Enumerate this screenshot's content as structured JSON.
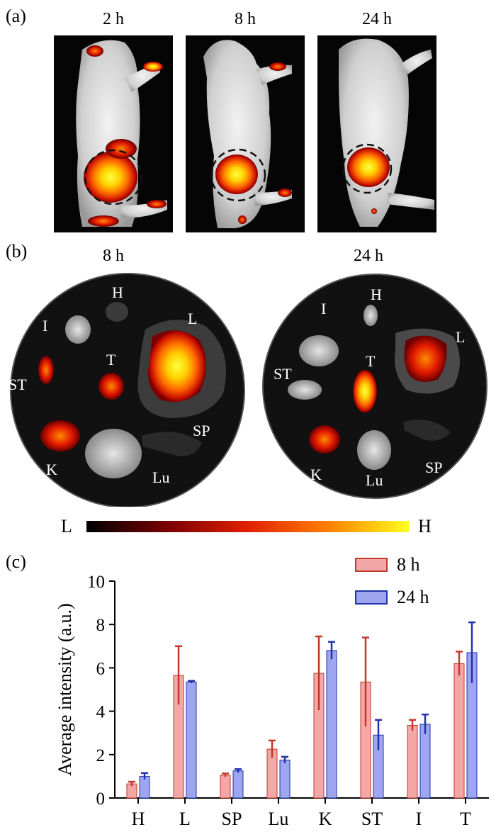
{
  "panel_a": {
    "label": "(a)",
    "timepoints": [
      "2 h",
      "8 h",
      "24 h"
    ]
  },
  "panel_b": {
    "label": "(b)",
    "timepoints": [
      "8 h",
      "24 h"
    ],
    "organs": [
      "H",
      "I",
      "L",
      "ST",
      "T",
      "K",
      "SP",
      "Lu"
    ],
    "colorbar": {
      "low": "L",
      "high": "H",
      "colors": [
        "#000000",
        "#7a0000",
        "#e02000",
        "#ff8000",
        "#ffff20"
      ]
    }
  },
  "panel_c": {
    "label": "(c)"
  },
  "chart_data": {
    "type": "bar",
    "ylabel": "Average intensity (a.u.)",
    "ylim": [
      0,
      10
    ],
    "yticks": [
      "0",
      "2",
      "4",
      "6",
      "8",
      "10"
    ],
    "categories": [
      "H",
      "L",
      "SP",
      "Lu",
      "K",
      "ST",
      "I",
      "T"
    ],
    "series": [
      {
        "name": "8 h",
        "values": [
          0.65,
          5.65,
          1.05,
          2.25,
          5.75,
          5.35,
          3.35,
          6.2
        ],
        "errors": [
          0.1,
          1.35,
          0.08,
          0.4,
          1.7,
          2.05,
          0.25,
          0.55
        ],
        "color": "#f4a7a7",
        "error_color": "#c0392b"
      },
      {
        "name": "24 h",
        "values": [
          1.0,
          5.35,
          1.25,
          1.75,
          6.8,
          2.9,
          3.4,
          6.7
        ],
        "errors": [
          0.15,
          0.05,
          0.08,
          0.15,
          0.4,
          0.7,
          0.45,
          1.4
        ],
        "color": "#9fa6f0",
        "error_color": "#2233aa"
      }
    ],
    "legend_position": "top-right",
    "grid": false
  }
}
